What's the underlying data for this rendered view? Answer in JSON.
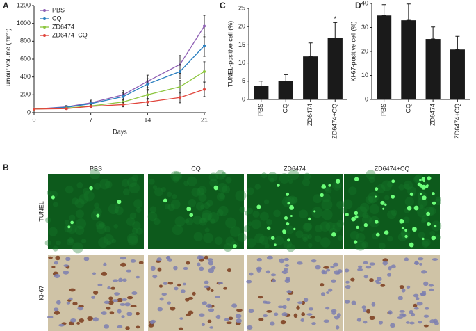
{
  "chart_data": [
    {
      "type": "line",
      "label": "A",
      "xlabel": "Days",
      "ylabel": "Tumour volume (mm³)",
      "x": [
        0,
        4,
        7,
        11,
        14,
        18,
        21
      ],
      "xlim": [
        0,
        21
      ],
      "xticks": [
        0,
        7,
        14,
        21
      ],
      "ylim": [
        0,
        1200
      ],
      "yticks": [
        0,
        200,
        400,
        600,
        800,
        1000,
        1200
      ],
      "legend": "upper left",
      "series": [
        {
          "name": "PBS",
          "color": "#8e5fb4",
          "values": [
            40,
            65,
            110,
            200,
            350,
            540,
            970
          ],
          "errors": [
            10,
            15,
            30,
            50,
            70,
            100,
            120
          ]
        },
        {
          "name": "CQ",
          "color": "#2a7fc0",
          "values": [
            40,
            60,
            100,
            180,
            320,
            460,
            750
          ],
          "errors": [
            10,
            15,
            25,
            40,
            60,
            80,
            120
          ]
        },
        {
          "name": "ZD6474",
          "color": "#8dc63f",
          "values": [
            40,
            50,
            75,
            120,
            200,
            290,
            460
          ],
          "errors": [
            10,
            10,
            20,
            30,
            50,
            70,
            110
          ]
        },
        {
          "name": "ZD6474+CQ",
          "color": "#e0453c",
          "values": [
            40,
            45,
            70,
            90,
            120,
            170,
            260
          ],
          "errors": [
            8,
            10,
            15,
            25,
            40,
            60,
            80
          ]
        }
      ]
    },
    {
      "type": "bar",
      "label": "C",
      "ylabel": "TUNEL-positive cell (%)",
      "color": "#1a1a1a",
      "categories": [
        "PBS",
        "CQ",
        "ZD6474",
        "ZD6474+CQ"
      ],
      "values": [
        3.7,
        5.0,
        11.8,
        16.8
      ],
      "errors": [
        1.3,
        1.8,
        3.7,
        4.3
      ],
      "ylim": [
        0,
        25
      ],
      "yticks": [
        0,
        5,
        10,
        15,
        20,
        25
      ],
      "annotations": [
        {
          "text": "*",
          "category": "ZD6474+CQ"
        }
      ]
    },
    {
      "type": "bar",
      "label": "D",
      "ylabel": "Ki-67-positive cell (%)",
      "color": "#1a1a1a",
      "categories": [
        "PBS",
        "CQ",
        "ZD6474",
        "ZD6474+CQ"
      ],
      "values": [
        35,
        33,
        25.2,
        20.8
      ],
      "errors": [
        4.5,
        6.8,
        5.0,
        5.5
      ],
      "ylim": [
        0,
        40
      ],
      "yticks": [
        0,
        10,
        20,
        30,
        40
      ]
    }
  ],
  "images": {
    "label": "B",
    "columns": [
      "PBS",
      "CQ",
      "ZD6474",
      "ZD6474+CQ"
    ],
    "rows": [
      "TUNEL",
      "Ki-67"
    ]
  }
}
